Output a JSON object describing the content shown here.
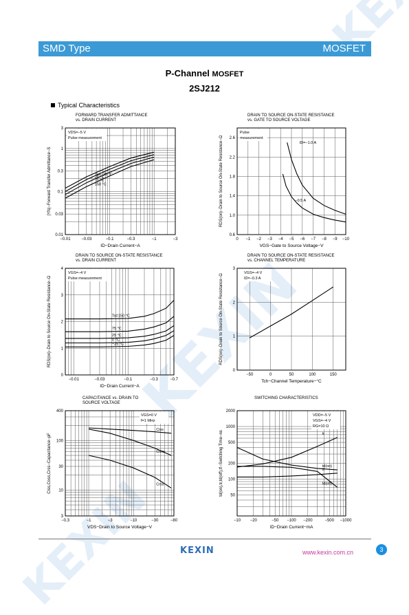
{
  "header": {
    "left": "SMD Type",
    "right": "MOSFET"
  },
  "title": {
    "part1": "P-Channel ",
    "part2": "MOSFET",
    "part_number": "2SJ212"
  },
  "section": {
    "label": "Typical  Characteristics"
  },
  "watermark": {
    "text": "KEXIN",
    "color": "#e3eef8"
  },
  "colors": {
    "header_bg": "#3b9ad6",
    "logo": "#2d6db5",
    "url": "#c5399b",
    "page_badge": "#1b8fe0"
  },
  "charts": [
    {
      "type": "line",
      "title_lines": [
        "FORWARD TRANSFER ADMITTANCE",
        "vs. DRAIN CURRENT"
      ],
      "xlabel": "ID−Drain Current−A",
      "ylabel": "|Yfs|−Forward Transfer Admittance−S",
      "xscale": "log",
      "yscale": "log",
      "xlim": [
        -0.01,
        -3
      ],
      "ylim": [
        0.01,
        3
      ],
      "xticks": [
        "−0.01",
        "−0.03",
        "−0.1",
        "−0.3",
        "−1",
        "−3"
      ],
      "yticks": [
        "0.01",
        "0.03",
        "0.1",
        "0.3",
        "1",
        "3"
      ],
      "conditions": [
        "VDS=−5 V",
        "Pulse measurement"
      ],
      "series": [
        {
          "name": "Ta=−25 °C",
          "x": [
            -0.01,
            -0.03,
            -0.1,
            -0.3,
            -1.0
          ],
          "y": [
            0.12,
            0.22,
            0.38,
            0.6,
            0.82
          ]
        },
        {
          "name": "25 °C",
          "x": [
            -0.01,
            -0.03,
            -0.1,
            -0.3,
            -1.0
          ],
          "y": [
            0.1,
            0.19,
            0.33,
            0.52,
            0.72
          ]
        },
        {
          "name": "75 °C",
          "x": [
            -0.01,
            -0.03,
            -0.1,
            -0.3,
            -1.0
          ],
          "y": [
            0.085,
            0.16,
            0.28,
            0.45,
            0.63
          ]
        },
        {
          "name": "150 °C",
          "x": [
            -0.01,
            -0.03,
            -0.1,
            -0.3,
            -1.0
          ],
          "y": [
            0.07,
            0.13,
            0.23,
            0.38,
            0.55
          ]
        }
      ]
    },
    {
      "type": "line",
      "title_lines": [
        "DRAIN TO SOURCE ON-STATE RESISTANCE",
        "vs. GATE TO SOURCE VOLTAGE"
      ],
      "xlabel": "VGS−Gate to Source Voltage−V",
      "ylabel": "RDS(on)−Drain to Source On-State Resistance−Ω",
      "xscale": "linear",
      "yscale": "linear",
      "xlim": [
        0,
        -10
      ],
      "ylim": [
        0.6,
        2.8
      ],
      "xticks": [
        "0",
        "−1",
        "−2",
        "−3",
        "−4",
        "−5",
        "−6",
        "−7",
        "−8",
        "−9",
        "−10"
      ],
      "yticks": [
        "0.6",
        "1.0",
        "1.4",
        "1.8",
        "2.2",
        "2.6"
      ],
      "conditions": [
        "Pulse",
        "measurement"
      ],
      "series": [
        {
          "name": "ID=−1.0 A",
          "x": [
            -4.6,
            -5,
            -5.5,
            -6,
            -7,
            -8,
            -9,
            -10
          ],
          "y": [
            2.5,
            2.15,
            1.85,
            1.62,
            1.35,
            1.2,
            1.1,
            1.02
          ]
        },
        {
          "name": "−0.5 A",
          "x": [
            -4.2,
            -4.5,
            -5,
            -5.5,
            -6,
            -7,
            -8,
            -9,
            -10
          ],
          "y": [
            1.85,
            1.6,
            1.38,
            1.25,
            1.15,
            1.02,
            0.95,
            0.9,
            0.86
          ]
        }
      ]
    },
    {
      "type": "line",
      "title_lines": [
        "DRAIN TO SOURCE ON-STATE RESISTANCE",
        "vs. DRAIN CURRENT"
      ],
      "xlabel": "ID−Drain Current−A",
      "ylabel": "RDS(on)−Drain to Source On-State Resistance−Ω",
      "xscale": "log",
      "yscale": "linear",
      "xlim": [
        -0.007,
        -0.7
      ],
      "ylim": [
        0,
        4
      ],
      "xticks": [
        "−0.01",
        "−0.03",
        "−0.1",
        "−0.3",
        "−0.7"
      ],
      "yticks": [
        "0",
        "1",
        "2",
        "3",
        "4"
      ],
      "conditions": [
        "VGS=−4 V",
        "Pulse measurement"
      ],
      "series": [
        {
          "name": "Ta=150 °C",
          "x": [
            -0.007,
            -0.03,
            -0.1,
            -0.2,
            -0.3,
            -0.5,
            -0.7
          ],
          "y": [
            2.1,
            2.1,
            2.12,
            2.2,
            2.3,
            2.5,
            2.8
          ]
        },
        {
          "name": "75 °C",
          "x": [
            -0.007,
            -0.03,
            -0.1,
            -0.2,
            -0.3,
            -0.5,
            -0.7
          ],
          "y": [
            1.62,
            1.62,
            1.64,
            1.72,
            1.8,
            1.95,
            2.2
          ]
        },
        {
          "name": "25 °C",
          "x": [
            -0.007,
            -0.03,
            -0.1,
            -0.2,
            -0.3,
            -0.5,
            -0.7
          ],
          "y": [
            1.37,
            1.37,
            1.39,
            1.45,
            1.52,
            1.65,
            1.85
          ]
        },
        {
          "name": "0 °C",
          "x": [
            -0.007,
            -0.03,
            -0.1,
            -0.2,
            -0.3,
            -0.5,
            -0.7
          ],
          "y": [
            1.2,
            1.2,
            1.22,
            1.28,
            1.35,
            1.48,
            1.66
          ]
        },
        {
          "name": "−25 °C",
          "x": [
            -0.007,
            -0.03,
            -0.1,
            -0.2,
            -0.3,
            -0.5,
            -0.7
          ],
          "y": [
            1.05,
            1.05,
            1.07,
            1.12,
            1.18,
            1.3,
            1.48
          ]
        }
      ]
    },
    {
      "type": "line",
      "title_lines": [
        "DRAIN TO SOURCE ON-STATE RESISTANCE",
        "vs. CHANNEL TEMPERATURE"
      ],
      "xlabel": "Tch−Channel Temperature−°C",
      "ylabel": "RDS(on)−Drain to Source On-State Resistance−Ω",
      "xscale": "linear",
      "yscale": "linear",
      "xlim": [
        -80,
        180
      ],
      "ylim": [
        0,
        3
      ],
      "xticks": [
        "−50",
        "0",
        "50",
        "100",
        "150"
      ],
      "yticks": [
        "0",
        "1",
        "2",
        "3"
      ],
      "conditions": [
        "VGS=−4 V",
        "ID=−0.3 A"
      ],
      "series": [
        {
          "name": "",
          "x": [
            -50,
            0,
            50,
            100,
            150
          ],
          "y": [
            0.95,
            1.3,
            1.65,
            2.05,
            2.45
          ]
        }
      ]
    },
    {
      "type": "line",
      "title_lines": [
        "CAPACITANCE vs. DRAIN TO",
        "SOURCE VOLTAGE"
      ],
      "xlabel": "VDS−Drain to Source Voltage−V",
      "ylabel": "Ciss,Coss,Crss−Capacitance−pF",
      "xscale": "log",
      "yscale": "log",
      "xlim": [
        -0.3,
        -80
      ],
      "ylim": [
        3,
        400
      ],
      "xticks": [
        "−0.3",
        "−1",
        "−3",
        "−10",
        "−30",
        "−80"
      ],
      "yticks": [
        "3",
        "10",
        "30",
        "100",
        "400"
      ],
      "conditions": [
        "VGS=0 V",
        "f=1 MHz"
      ],
      "series": [
        {
          "name": "Ciss",
          "x": [
            -1,
            -3,
            -10,
            -30,
            -70
          ],
          "y": [
            180,
            170,
            160,
            150,
            140
          ]
        },
        {
          "name": "Coss",
          "x": [
            -1,
            -3,
            -10,
            -30,
            -70
          ],
          "y": [
            170,
            140,
            100,
            70,
            50
          ]
        },
        {
          "name": "Crss",
          "x": [
            -1,
            -3,
            -10,
            -30,
            -70
          ],
          "y": [
            50,
            40,
            28,
            18,
            11
          ]
        }
      ]
    },
    {
      "type": "line",
      "title_lines": [
        "SWITCHING CHARACTERISTICS"
      ],
      "xlabel": "ID−Drain Current−mA",
      "ylabel": "td(on),tr,td(off),tf−Switching Time−ns",
      "xscale": "log",
      "yscale": "log",
      "xlim": [
        -10,
        -1000
      ],
      "ylim": [
        20,
        2000
      ],
      "xticks": [
        "−10",
        "−20",
        "−50",
        "−100",
        "−200",
        "−500",
        "−1000"
      ],
      "yticks": [
        "50",
        "100",
        "200",
        "500",
        "1000",
        "2000"
      ],
      "conditions": [
        "VDD=−5 V",
        "VGS=−4 V",
        "RG=10 Ω"
      ],
      "series": [
        {
          "name": "tr",
          "x": [
            -10,
            -30,
            -100,
            -300,
            -700
          ],
          "y": [
            170,
            195,
            260,
            420,
            620
          ]
        },
        {
          "name": "td(on)",
          "x": [
            -10,
            -30,
            -100,
            -300,
            -700
          ],
          "y": [
            400,
            240,
            185,
            160,
            150
          ]
        },
        {
          "name": "tf",
          "x": [
            -10,
            -30,
            -100,
            -300,
            -700
          ],
          "y": [
            110,
            110,
            115,
            122,
            130
          ]
        },
        {
          "name": "td(off)",
          "x": [
            -10,
            -30,
            -100,
            -300,
            -700
          ],
          "y": [
            175,
            175,
            168,
            140,
            70
          ]
        }
      ]
    }
  ],
  "footer": {
    "logo": "KEXIN",
    "url": "www.kexin.com.cn",
    "page": "3"
  }
}
